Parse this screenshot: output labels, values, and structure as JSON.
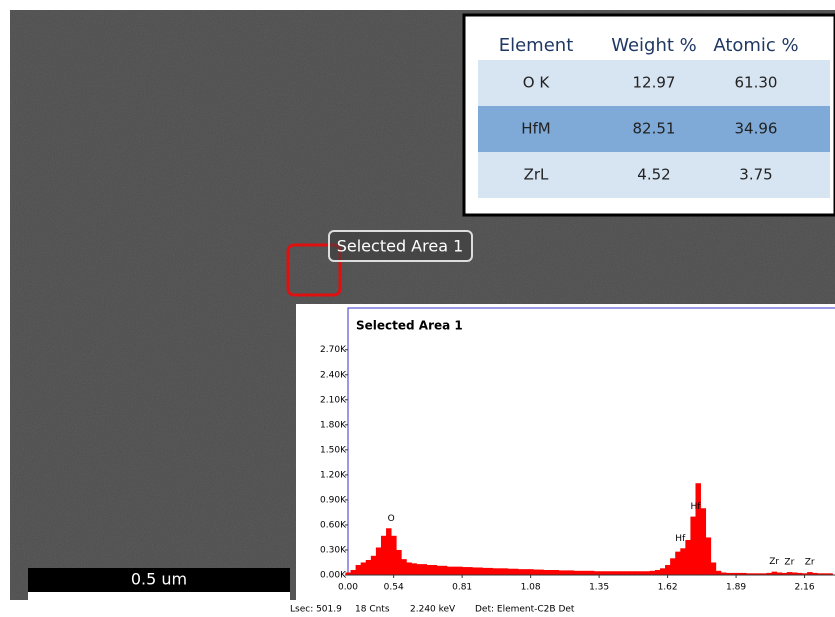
{
  "scale_bar": {
    "label": "0.5 um"
  },
  "selection": {
    "label": "Selected Area 1"
  },
  "table": {
    "header": [
      "Element",
      "Weight %",
      "Atomic %"
    ],
    "rows": [
      [
        "O K",
        "12.97",
        "61.30"
      ],
      [
        "HfM",
        "82.51",
        "34.96"
      ],
      [
        "ZrL",
        "4.52",
        "3.75"
      ]
    ]
  },
  "chart_data": {
    "type": "bar",
    "title": "Selected Area 1",
    "color": "#ff0000",
    "x_start_label": "0.00",
    "x": [
      0.36,
      0.38,
      0.4,
      0.42,
      0.44,
      0.46,
      0.48,
      0.5,
      0.52,
      0.54,
      0.56,
      0.58,
      0.6,
      0.62,
      0.64,
      0.66,
      0.68,
      0.7,
      0.72,
      0.74,
      0.76,
      0.78,
      0.8,
      0.82,
      0.84,
      0.86,
      0.88,
      0.9,
      0.92,
      0.94,
      0.96,
      0.98,
      1.0,
      1.02,
      1.04,
      1.06,
      1.08,
      1.1,
      1.12,
      1.14,
      1.16,
      1.18,
      1.2,
      1.22,
      1.24,
      1.26,
      1.28,
      1.3,
      1.32,
      1.34,
      1.36,
      1.38,
      1.4,
      1.42,
      1.44,
      1.46,
      1.48,
      1.5,
      1.52,
      1.54,
      1.56,
      1.58,
      1.6,
      1.62,
      1.64,
      1.66,
      1.68,
      1.7,
      1.72,
      1.74,
      1.76,
      1.78,
      1.8,
      1.82,
      1.84,
      1.86,
      1.88,
      1.9,
      1.92,
      1.94,
      1.96,
      1.98,
      2.0,
      2.02,
      2.04,
      2.06,
      2.08,
      2.1,
      2.12,
      2.14,
      2.16,
      2.18,
      2.2,
      2.22,
      2.24,
      2.26
    ],
    "values": [
      30,
      60,
      120,
      150,
      180,
      230,
      330,
      470,
      560,
      470,
      300,
      190,
      150,
      140,
      130,
      130,
      120,
      120,
      110,
      110,
      100,
      100,
      100,
      95,
      95,
      90,
      90,
      85,
      85,
      80,
      80,
      80,
      75,
      75,
      70,
      70,
      70,
      65,
      65,
      60,
      60,
      60,
      55,
      55,
      55,
      50,
      50,
      50,
      50,
      45,
      45,
      45,
      45,
      45,
      45,
      45,
      45,
      45,
      45,
      45,
      50,
      60,
      80,
      120,
      200,
      280,
      320,
      420,
      700,
      1100,
      800,
      450,
      150,
      50,
      30,
      25,
      25,
      25,
      25,
      20,
      20,
      20,
      20,
      25,
      40,
      30,
      25,
      35,
      30,
      25,
      20,
      35,
      25,
      20,
      20,
      20
    ],
    "annotations": [
      {
        "text": "O",
        "x": 0.53,
        "y": 560
      },
      {
        "text": "Hf",
        "x": 1.67,
        "y": 320
      },
      {
        "text": "Hf",
        "x": 1.73,
        "y": 700
      },
      {
        "text": "Zr",
        "x": 2.04,
        "y": 40
      },
      {
        "text": "Zr",
        "x": 2.1,
        "y": 35
      },
      {
        "text": "Zr",
        "x": 2.18,
        "y": 35
      }
    ],
    "xlim": [
      0.36,
      2.28
    ],
    "ylim": [
      0,
      3200
    ],
    "xticks": [
      {
        "value": 0.54,
        "label": "0.54"
      },
      0.81,
      1.08,
      1.35,
      1.62,
      1.89,
      2.16
    ],
    "yticks": [
      {
        "value": 0,
        "label": "0.00K"
      },
      {
        "value": 300,
        "label": "0.30K"
      },
      {
        "value": 600,
        "label": "0.60K"
      },
      {
        "value": 900,
        "label": "0.90K"
      },
      {
        "value": 1200,
        "label": "1.20K"
      },
      {
        "value": 1500,
        "label": "1.50K"
      },
      {
        "value": 1800,
        "label": "1.80K"
      },
      {
        "value": 2100,
        "label": "2.10K"
      },
      {
        "value": 2400,
        "label": "2.40K"
      },
      {
        "value": 2700,
        "label": "2.70K"
      }
    ],
    "footer": [
      "Lsec: 501.9",
      "18 Cnts",
      "2.240 keV",
      "Det: Element-C2B Det"
    ]
  }
}
